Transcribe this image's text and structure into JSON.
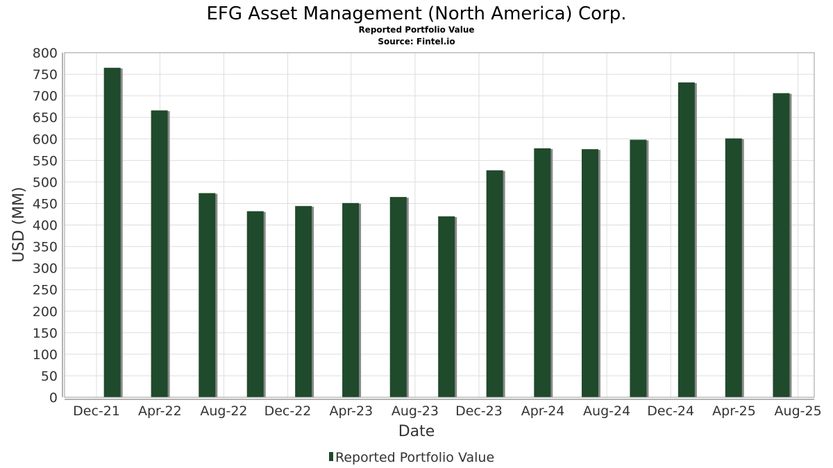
{
  "header": {
    "title": "EFG Asset Management (North America) Corp.",
    "subtitle": "Reported Portfolio Value",
    "source": "Source: Fintel.io"
  },
  "colors": {
    "bar": "#1f4a2b",
    "bar_shadow": "#8a8a8a",
    "grid": "#dddddd",
    "plot_border": "#999999"
  },
  "chart_data": {
    "type": "bar",
    "title": "EFG Asset Management (North America) Corp.",
    "subtitle": "Reported Portfolio Value",
    "xlabel": "Date",
    "ylabel": "USD (MM)",
    "ylim": [
      0,
      800
    ],
    "y_ticks": [
      "0",
      "50",
      "100",
      "150",
      "200",
      "250",
      "300",
      "350",
      "400",
      "450",
      "500",
      "550",
      "600",
      "650",
      "700",
      "750",
      "800"
    ],
    "x_ticks": [
      "Dec-21",
      "Apr-22",
      "Aug-22",
      "Dec-22",
      "Apr-23",
      "Aug-23",
      "Dec-23",
      "Apr-24",
      "Aug-24",
      "Dec-24",
      "Apr-25",
      "Aug-25"
    ],
    "x_range": [
      "2021-10-01",
      "2025-09-01"
    ],
    "grid": true,
    "legend_position": "bottom",
    "series": [
      {
        "name": "Reported Portfolio Value",
        "points": [
          {
            "x": "2021-12-31",
            "y": 765
          },
          {
            "x": "2022-03-31",
            "y": 666
          },
          {
            "x": "2022-06-30",
            "y": 474
          },
          {
            "x": "2022-09-30",
            "y": 432
          },
          {
            "x": "2022-12-31",
            "y": 444
          },
          {
            "x": "2023-03-31",
            "y": 451
          },
          {
            "x": "2023-06-30",
            "y": 465
          },
          {
            "x": "2023-09-30",
            "y": 420
          },
          {
            "x": "2023-12-31",
            "y": 527
          },
          {
            "x": "2024-03-31",
            "y": 578
          },
          {
            "x": "2024-06-30",
            "y": 576
          },
          {
            "x": "2024-09-30",
            "y": 598
          },
          {
            "x": "2024-12-31",
            "y": 731
          },
          {
            "x": "2025-03-31",
            "y": 601
          },
          {
            "x": "2025-06-30",
            "y": 706
          }
        ]
      }
    ]
  }
}
